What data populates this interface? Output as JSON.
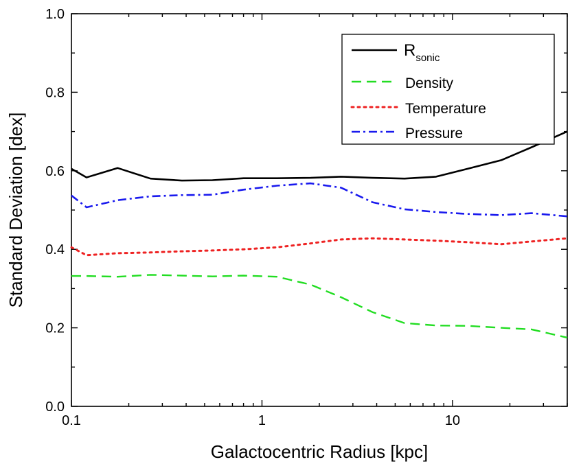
{
  "chart_data": {
    "type": "line",
    "xlabel": "Galactocentric Radius [kpc]",
    "ylabel": "Standard Deviation [dex]",
    "xscale": "log",
    "xlim": [
      0.1,
      40
    ],
    "ylim": [
      0.0,
      1.0
    ],
    "x_ticks": [
      "0.1",
      "1",
      "10"
    ],
    "y_ticks": [
      "0.0",
      "0.2",
      "0.4",
      "0.6",
      "0.8",
      "1.0"
    ],
    "legend": {
      "position": "top-right"
    },
    "series": [
      {
        "name_main": "R",
        "name_sub": "sonic",
        "color": "#000000",
        "style": "solid",
        "x": [
          0.1,
          0.12,
          0.175,
          0.26,
          0.38,
          0.55,
          0.8,
          1.2,
          1.8,
          2.6,
          3.8,
          5.6,
          8.2,
          12,
          18,
          26,
          40
        ],
        "y": [
          0.605,
          0.583,
          0.607,
          0.58,
          0.575,
          0.576,
          0.581,
          0.581,
          0.582,
          0.585,
          0.582,
          0.58,
          0.585,
          0.605,
          0.627,
          0.66,
          0.7
        ]
      },
      {
        "name": "Density",
        "color": "#22dd22",
        "style": "dashed",
        "x": [
          0.1,
          0.12,
          0.175,
          0.26,
          0.38,
          0.55,
          0.8,
          1.2,
          1.8,
          2.6,
          3.8,
          5.6,
          8.2,
          12,
          18,
          26,
          40
        ],
        "y": [
          0.332,
          0.332,
          0.33,
          0.335,
          0.333,
          0.331,
          0.333,
          0.33,
          0.31,
          0.278,
          0.24,
          0.212,
          0.206,
          0.205,
          0.2,
          0.196,
          0.175
        ]
      },
      {
        "name": "Temperature",
        "color": "#ee2222",
        "style": "dotted",
        "x": [
          0.1,
          0.12,
          0.175,
          0.26,
          0.38,
          0.55,
          0.8,
          1.2,
          1.8,
          2.6,
          3.8,
          5.6,
          8.2,
          12,
          18,
          26,
          40
        ],
        "y": [
          0.405,
          0.385,
          0.39,
          0.392,
          0.395,
          0.397,
          0.4,
          0.405,
          0.415,
          0.425,
          0.428,
          0.425,
          0.422,
          0.418,
          0.413,
          0.42,
          0.428
        ]
      },
      {
        "name": "Pressure",
        "color": "#1a1aee",
        "style": "dashdot",
        "x": [
          0.1,
          0.12,
          0.175,
          0.26,
          0.38,
          0.55,
          0.8,
          1.2,
          1.8,
          2.6,
          3.8,
          5.6,
          8.2,
          12,
          18,
          26,
          40
        ],
        "y": [
          0.537,
          0.507,
          0.525,
          0.535,
          0.538,
          0.539,
          0.552,
          0.562,
          0.568,
          0.557,
          0.52,
          0.502,
          0.495,
          0.49,
          0.487,
          0.492,
          0.484
        ]
      }
    ]
  }
}
